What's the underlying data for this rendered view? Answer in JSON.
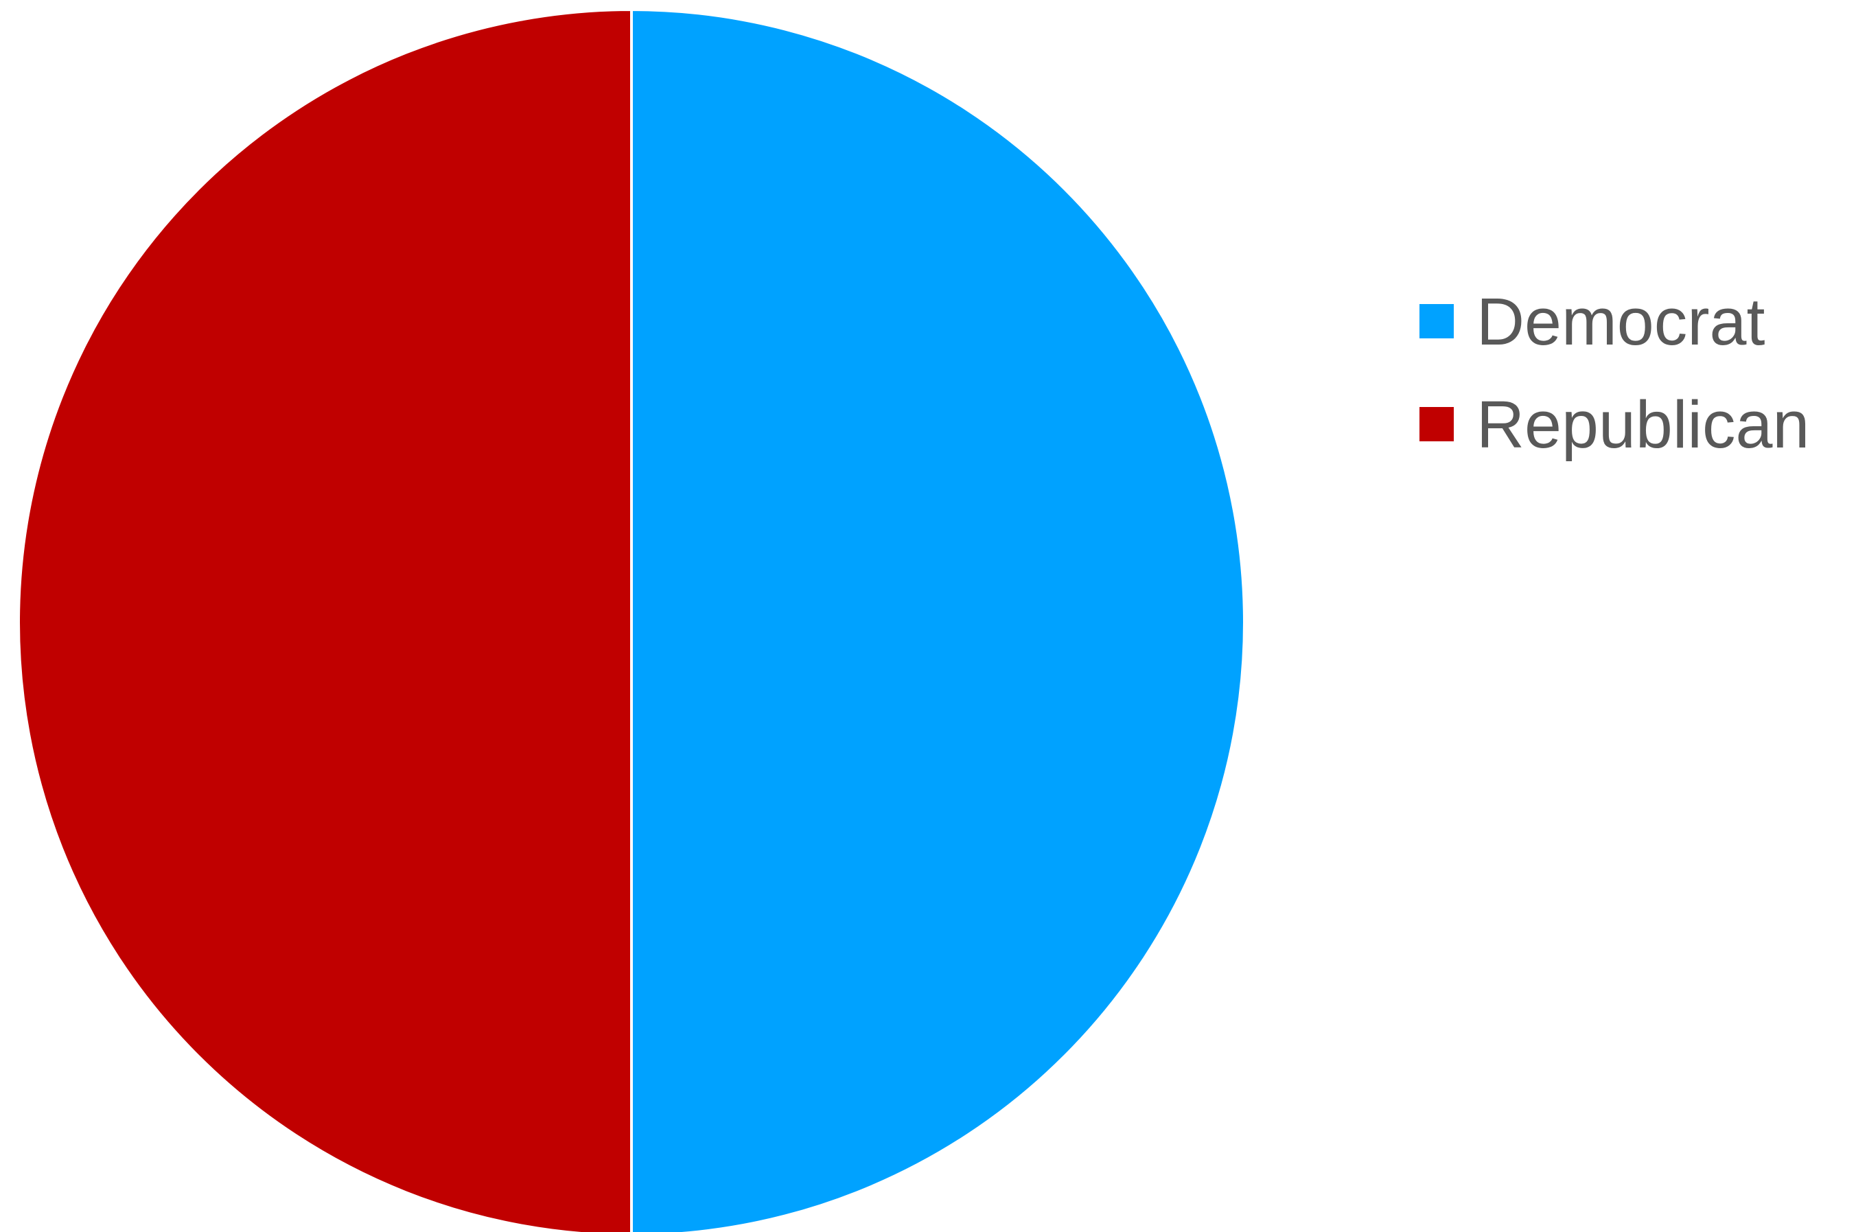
{
  "chart_data": {
    "type": "pie",
    "title": "",
    "categories": [
      "Democrat",
      "Republican"
    ],
    "values": [
      50,
      50
    ],
    "colors": [
      "#00A2FF",
      "#C00000"
    ],
    "slice_border_color": "#ffffff",
    "start_angle_deg": 0,
    "direction": "clockwise",
    "legend": {
      "placement": "right",
      "entries": [
        {
          "label": "Democrat",
          "color": "#00A2FF"
        },
        {
          "label": "Republican",
          "color": "#C00000"
        }
      ]
    }
  }
}
